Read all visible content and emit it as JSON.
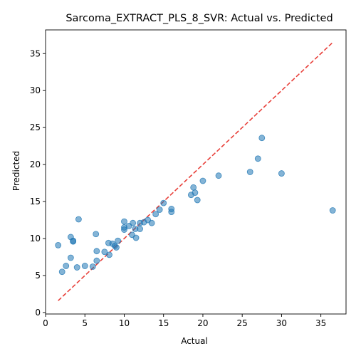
{
  "chart_data": {
    "type": "scatter",
    "title": "Sarcoma_EXTRACT_PLS_8_SVR: Actual vs. Predicted",
    "xlabel": "Actual",
    "ylabel": "Predicted",
    "xlim": [
      0,
      38.2
    ],
    "ylim": [
      -0.2,
      38.2
    ],
    "xticks": [
      0,
      5,
      10,
      15,
      20,
      25,
      30,
      35
    ],
    "yticks": [
      0,
      5,
      10,
      15,
      20,
      25,
      30,
      35
    ],
    "grid": false,
    "point_color": "#1f77b4",
    "point_opacity": 0.55,
    "identity_line": {
      "from": [
        1.6,
        1.6
      ],
      "to": [
        36.6,
        36.6
      ],
      "color": "#e8403a",
      "style": "dashed"
    },
    "points": [
      {
        "x": 1.6,
        "y": 9.1
      },
      {
        "x": 2.1,
        "y": 5.5
      },
      {
        "x": 2.6,
        "y": 6.3
      },
      {
        "x": 3.2,
        "y": 7.4
      },
      {
        "x": 3.2,
        "y": 10.2
      },
      {
        "x": 3.5,
        "y": 9.7
      },
      {
        "x": 3.5,
        "y": 9.6
      },
      {
        "x": 4.0,
        "y": 6.1
      },
      {
        "x": 4.2,
        "y": 12.6
      },
      {
        "x": 5.0,
        "y": 6.3
      },
      {
        "x": 6.0,
        "y": 6.2
      },
      {
        "x": 6.4,
        "y": 10.6
      },
      {
        "x": 6.5,
        "y": 8.3
      },
      {
        "x": 6.5,
        "y": 7.0
      },
      {
        "x": 7.5,
        "y": 8.2
      },
      {
        "x": 8.0,
        "y": 9.4
      },
      {
        "x": 8.1,
        "y": 7.8
      },
      {
        "x": 8.5,
        "y": 9.3
      },
      {
        "x": 8.8,
        "y": 9.0
      },
      {
        "x": 9.0,
        "y": 8.8
      },
      {
        "x": 9.2,
        "y": 9.7
      },
      {
        "x": 10.0,
        "y": 12.3
      },
      {
        "x": 10.0,
        "y": 11.2
      },
      {
        "x": 10.0,
        "y": 11.5
      },
      {
        "x": 10.6,
        "y": 11.7
      },
      {
        "x": 11.0,
        "y": 10.5
      },
      {
        "x": 11.1,
        "y": 12.1
      },
      {
        "x": 11.4,
        "y": 11.3
      },
      {
        "x": 11.5,
        "y": 10.1
      },
      {
        "x": 12.0,
        "y": 12.1
      },
      {
        "x": 12.0,
        "y": 11.3
      },
      {
        "x": 12.5,
        "y": 12.2
      },
      {
        "x": 13.0,
        "y": 12.5
      },
      {
        "x": 13.5,
        "y": 12.1
      },
      {
        "x": 14.0,
        "y": 13.3
      },
      {
        "x": 14.5,
        "y": 13.9
      },
      {
        "x": 15.0,
        "y": 14.8
      },
      {
        "x": 16.0,
        "y": 13.6
      },
      {
        "x": 16.0,
        "y": 14.0
      },
      {
        "x": 18.5,
        "y": 15.9
      },
      {
        "x": 18.8,
        "y": 16.9
      },
      {
        "x": 19.0,
        "y": 16.2
      },
      {
        "x": 19.3,
        "y": 15.2
      },
      {
        "x": 20.0,
        "y": 17.8
      },
      {
        "x": 22.0,
        "y": 18.5
      },
      {
        "x": 26.0,
        "y": 19.0
      },
      {
        "x": 27.0,
        "y": 20.8
      },
      {
        "x": 27.5,
        "y": 23.6
      },
      {
        "x": 30.0,
        "y": 18.8
      },
      {
        "x": 36.5,
        "y": 13.8
      }
    ]
  }
}
